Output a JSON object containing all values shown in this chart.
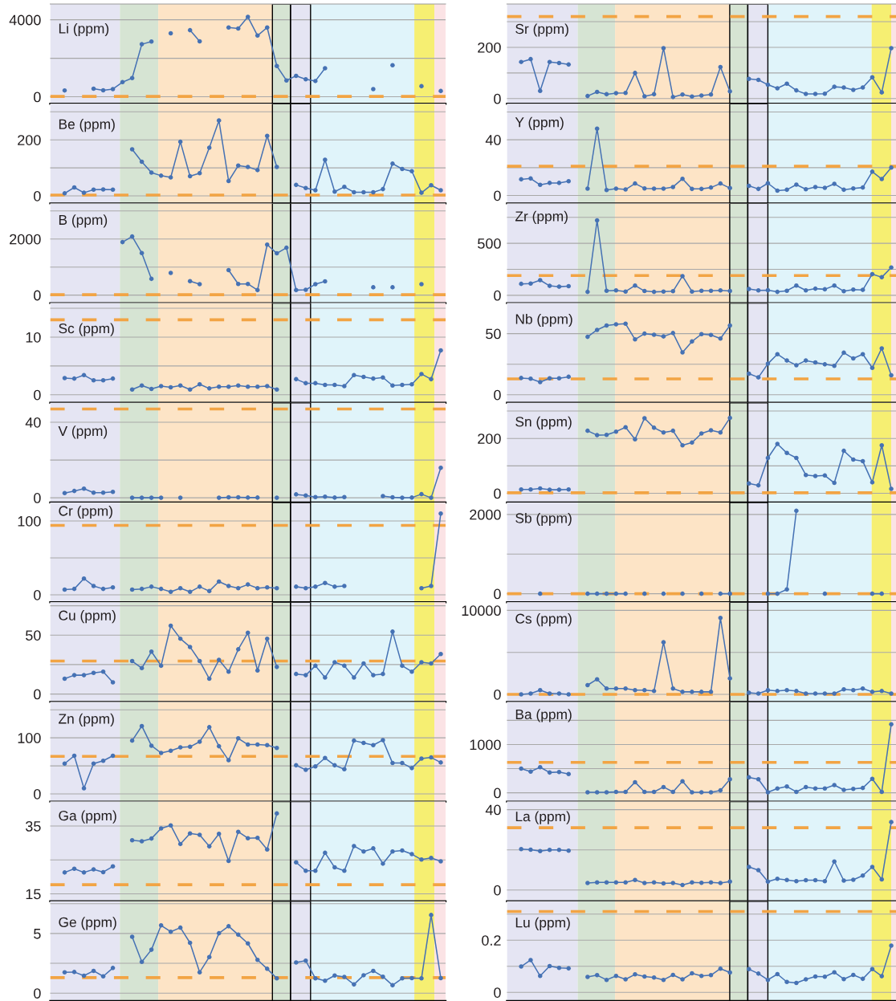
{
  "chart_data": [
    {
      "type": "line",
      "title": "Li (ppm)",
      "categories": [
        null,
        null,
        null,
        null,
        null,
        null,
        null,
        null,
        null,
        null,
        null,
        null,
        null,
        null,
        null,
        null,
        null,
        null,
        null,
        null,
        null,
        null,
        null,
        null,
        null,
        null,
        null,
        null,
        null,
        null,
        null,
        null,
        null,
        null,
        null,
        null,
        null,
        null,
        null,
        null,
        null
      ],
      "values": [
        null,
        330,
        null,
        null,
        420,
        340,
        400,
        760,
        970,
        2730,
        2870,
        null,
        3300,
        null,
        3460,
        2880,
        null,
        null,
        3600,
        3550,
        4150,
        3180,
        3600,
        1600,
        850,
        1090,
        910,
        820,
        1480,
        null,
        null,
        null,
        null,
        400,
        null,
        1640,
        null,
        null,
        550,
        null,
        300
      ],
      "color": "#4672b4",
      "marker": "circle",
      "ylim": [
        -360,
        4820
      ],
      "yticks": [
        0,
        {
          "value": 2000,
          "label": null
        },
        4000
      ],
      "grid": "y",
      "tick_labels": "y",
      "ref_lines": [
        {
          "axis": "y",
          "value": 20,
          "color": "#f2a444",
          "line_style": "dashed"
        }
      ]
    },
    {
      "type": "line",
      "title": "Sr (ppm)",
      "categories": [
        null,
        null,
        null,
        null,
        null,
        null,
        null,
        null,
        null,
        null,
        null,
        null,
        null,
        null,
        null,
        null,
        null,
        null,
        null,
        null,
        null,
        null,
        null,
        null,
        null,
        null,
        null,
        null,
        null,
        null,
        null,
        null,
        null,
        null,
        null,
        null,
        null,
        null,
        null,
        null,
        null
      ],
      "values": [
        null,
        143,
        154,
        30,
        143,
        139,
        133,
        null,
        10,
        26,
        17,
        21,
        22,
        100,
        9,
        17,
        197,
        6,
        16,
        8,
        12,
        16,
        123,
        28,
        null,
        77,
        73,
        54,
        40,
        58,
        32,
        18,
        18,
        19,
        46,
        43,
        34,
        43,
        83,
        24,
        197
      ],
      "color": "#4672b4",
      "marker": "circle",
      "ylim": [
        -20,
        369
      ],
      "yticks": [
        0,
        {
          "value": 100,
          "label": null
        },
        200,
        {
          "value": 300,
          "label": null
        }
      ],
      "grid": "y",
      "tick_labels": "y",
      "ref_lines": [
        {
          "axis": "y",
          "value": 320,
          "color": "#f2a444",
          "line_style": "dashed"
        }
      ]
    },
    {
      "type": "line",
      "title": "Be (ppm)",
      "categories": [
        null,
        null,
        null,
        null,
        null,
        null,
        null,
        null,
        null,
        null,
        null,
        null,
        null,
        null,
        null,
        null,
        null,
        null,
        null,
        null,
        null,
        null,
        null,
        null,
        null,
        null,
        null,
        null,
        null,
        null,
        null,
        null,
        null,
        null,
        null,
        null,
        null,
        null,
        null,
        null,
        null
      ],
      "values": [
        null,
        9,
        30,
        11,
        22,
        23,
        22,
        null,
        166,
        122,
        83,
        72,
        66,
        193,
        70,
        81,
        172,
        269,
        53,
        108,
        103,
        92,
        214,
        103,
        null,
        39,
        28,
        20,
        129,
        15,
        32,
        13,
        13,
        13,
        24,
        115,
        96,
        88,
        11,
        38,
        20
      ],
      "color": "#4672b4",
      "marker": "circle",
      "ylim": [
        -27,
        329
      ],
      "yticks": [
        0,
        {
          "value": 100,
          "label": null
        },
        200,
        {
          "value": 300,
          "label": null
        }
      ],
      "grid": "y",
      "tick_labels": "y",
      "ref_lines": [
        {
          "axis": "y",
          "value": 3,
          "color": "#f2a444",
          "line_style": "dashed"
        }
      ]
    },
    {
      "type": "line",
      "title": "Y (ppm)",
      "categories": [
        null,
        null,
        null,
        null,
        null,
        null,
        null,
        null,
        null,
        null,
        null,
        null,
        null,
        null,
        null,
        null,
        null,
        null,
        null,
        null,
        null,
        null,
        null,
        null,
        null,
        null,
        null,
        null,
        null,
        null,
        null,
        null,
        null,
        null,
        null,
        null,
        null,
        null,
        null,
        null,
        null
      ],
      "values": [
        null,
        11.6,
        12.2,
        7.6,
        9,
        9,
        10.2,
        null,
        4.9,
        48,
        3.9,
        4.9,
        4.3,
        8.6,
        5.1,
        4.9,
        4.9,
        6.1,
        12,
        4.7,
        4.7,
        5.7,
        8.6,
        5.3,
        null,
        6.9,
        4.7,
        8.8,
        3.5,
        4.1,
        7.8,
        4.5,
        6.1,
        5.5,
        8.4,
        4.1,
        5.1,
        5.7,
        17.1,
        11.8,
        20
      ],
      "color": "#4672b4",
      "marker": "circle",
      "ylim": [
        -5.7,
        65.9
      ],
      "yticks": [
        0,
        {
          "value": 20,
          "label": null
        },
        40,
        {
          "value": 60,
          "label": null
        }
      ],
      "grid": "y",
      "tick_labels": "y",
      "ref_lines": [
        {
          "axis": "y",
          "value": 21,
          "color": "#f2a444",
          "line_style": "dashed"
        }
      ]
    },
    {
      "type": "line",
      "title": "B (ppm)",
      "categories": [
        null,
        null,
        null,
        null,
        null,
        null,
        null,
        null,
        null,
        null,
        null,
        null,
        null,
        null,
        null,
        null,
        null,
        null,
        null,
        null,
        null,
        null,
        null,
        null,
        null,
        null,
        null,
        null,
        null,
        null,
        null,
        null,
        null,
        null,
        null,
        null,
        null,
        null,
        null,
        null,
        null
      ],
      "values": [
        null,
        null,
        null,
        null,
        null,
        null,
        null,
        1890,
        2090,
        1500,
        580,
        null,
        790,
        null,
        500,
        390,
        null,
        null,
        890,
        400,
        400,
        180,
        1800,
        1490,
        1690,
        180,
        190,
        390,
        490,
        null,
        null,
        null,
        null,
        280,
        null,
        280,
        null,
        null,
        390,
        null,
        null
      ],
      "color": "#4672b4",
      "marker": "circle",
      "ylim": [
        -284,
        3269
      ],
      "yticks": [
        0,
        {
          "value": 1000,
          "label": null
        },
        2000,
        {
          "value": 3000,
          "label": null
        }
      ],
      "grid": "y",
      "tick_labels": "y",
      "ref_lines": [
        {
          "axis": "y",
          "value": 15,
          "color": "#f2a444",
          "line_style": "dashed"
        }
      ]
    },
    {
      "type": "line",
      "title": "Zr (ppm)",
      "categories": [
        null,
        null,
        null,
        null,
        null,
        null,
        null,
        null,
        null,
        null,
        null,
        null,
        null,
        null,
        null,
        null,
        null,
        null,
        null,
        null,
        null,
        null,
        null,
        null,
        null,
        null,
        null,
        null,
        null,
        null,
        null,
        null,
        null,
        null,
        null,
        null,
        null,
        null,
        null,
        null,
        null
      ],
      "values": [
        null,
        110,
        113,
        146,
        91,
        83,
        88,
        null,
        33,
        721,
        44,
        47,
        36,
        94,
        41,
        33,
        36,
        39,
        185,
        36,
        44,
        44,
        47,
        41,
        null,
        61,
        47,
        50,
        33,
        44,
        94,
        47,
        64,
        58,
        94,
        39,
        55,
        52,
        204,
        174,
        268
      ],
      "color": "#4672b4",
      "marker": "circle",
      "ylim": [
        -75,
        884
      ],
      "yticks": [
        0,
        {
          "value": 250,
          "label": null
        },
        500,
        {
          "value": 750,
          "label": null
        }
      ],
      "grid": "y",
      "tick_labels": "y",
      "ref_lines": [
        {
          "axis": "y",
          "value": 190,
          "color": "#f2a444",
          "line_style": "dashed"
        }
      ]
    },
    {
      "type": "line",
      "title": "Sc (ppm)",
      "categories": [
        null,
        null,
        null,
        null,
        null,
        null,
        null,
        null,
        null,
        null,
        null,
        null,
        null,
        null,
        null,
        null,
        null,
        null,
        null,
        null,
        null,
        null,
        null,
        null,
        null,
        null,
        null,
        null,
        null,
        null,
        null,
        null,
        null,
        null,
        null,
        null,
        null,
        null,
        null,
        null,
        null
      ],
      "values": [
        null,
        2.9,
        2.8,
        3.4,
        2.5,
        2.5,
        2.8,
        null,
        0.9,
        1.6,
        1.0,
        1.5,
        1.3,
        1.6,
        0.9,
        1.8,
        1.1,
        1.4,
        1.4,
        1.6,
        1.4,
        1.4,
        1.5,
        0.9,
        null,
        2.7,
        2.0,
        2.0,
        1.7,
        1.7,
        1.5,
        3.4,
        3.1,
        2.8,
        3.0,
        1.6,
        1.7,
        1.8,
        3.6,
        2.7,
        7.7
      ],
      "color": "#4672b4",
      "marker": "circle",
      "ylim": [
        -1.4,
        15.9
      ],
      "yticks": [
        0,
        {
          "value": 5,
          "label": null
        },
        10,
        {
          "value": 15,
          "label": null
        }
      ],
      "grid": "y",
      "tick_labels": "y",
      "ref_lines": [
        {
          "axis": "y",
          "value": 13,
          "color": "#f2a444",
          "line_style": "dashed"
        }
      ]
    },
    {
      "type": "line",
      "title": "Nb (ppm)",
      "categories": [
        null,
        null,
        null,
        null,
        null,
        null,
        null,
        null,
        null,
        null,
        null,
        null,
        null,
        null,
        null,
        null,
        null,
        null,
        null,
        null,
        null,
        null,
        null,
        null,
        null,
        null,
        null,
        null,
        null,
        null,
        null,
        null,
        null,
        null,
        null,
        null,
        null,
        null,
        null,
        null,
        null
      ],
      "values": [
        null,
        13.7,
        13.1,
        10.4,
        13.5,
        13.5,
        14.7,
        null,
        47.4,
        53.1,
        56.7,
        57.6,
        58.1,
        45.3,
        50,
        49.1,
        47.7,
        50.5,
        34.7,
        43.6,
        49.6,
        48.9,
        46,
        56.7,
        null,
        17.3,
        14.2,
        25.4,
        33.2,
        28,
        24.2,
        28,
        26.4,
        24.9,
        23.7,
        34.4,
        29.7,
        33.2,
        22,
        38,
        15.9
      ],
      "color": "#4672b4",
      "marker": "circle",
      "ylim": [
        -6.6,
        75
      ],
      "yticks": [
        0,
        {
          "value": 25,
          "label": null
        },
        50
      ],
      "grid": "y",
      "tick_labels": "y",
      "ref_lines": [
        {
          "axis": "y",
          "value": 13,
          "color": "#f2a444",
          "line_style": "dashed"
        }
      ]
    },
    {
      "type": "line",
      "title": "V (ppm)",
      "categories": [
        null,
        null,
        null,
        null,
        null,
        null,
        null,
        null,
        null,
        null,
        null,
        null,
        null,
        null,
        null,
        null,
        null,
        null,
        null,
        null,
        null,
        null,
        null,
        null,
        null,
        null,
        null,
        null,
        null,
        null,
        null,
        null,
        null,
        null,
        null,
        null,
        null,
        null,
        null,
        null,
        null
      ],
      "values": [
        null,
        2.5,
        3.6,
        4.8,
        2.7,
        2.7,
        3.1,
        null,
        0,
        0,
        0,
        0,
        null,
        0,
        null,
        null,
        null,
        0,
        0.3,
        0.3,
        0.1,
        0.1,
        null,
        0,
        null,
        1.8,
        1.2,
        0.4,
        0.6,
        0.1,
        0.4,
        null,
        null,
        null,
        0.9,
        0.3,
        0,
        0.1,
        1.9,
        0,
        15.9
      ],
      "color": "#4672b4",
      "marker": "circle",
      "ylim": [
        -2.5,
        50.3
      ],
      "yticks": [
        0,
        {
          "value": 20,
          "label": null
        },
        40
      ],
      "grid": "y",
      "tick_labels": "y",
      "ref_lines": [
        {
          "axis": "y",
          "value": 47,
          "color": "#f2a444",
          "line_style": "dashed"
        }
      ]
    },
    {
      "type": "line",
      "title": "Sn (ppm)",
      "categories": [
        null,
        null,
        null,
        null,
        null,
        null,
        null,
        null,
        null,
        null,
        null,
        null,
        null,
        null,
        null,
        null,
        null,
        null,
        null,
        null,
        null,
        null,
        null,
        null,
        null,
        null,
        null,
        null,
        null,
        null,
        null,
        null,
        null,
        null,
        null,
        null,
        null,
        null,
        null,
        null,
        null
      ],
      "values": [
        null,
        14,
        14,
        18,
        13,
        13,
        14,
        null,
        228,
        212,
        213,
        225,
        241,
        197,
        274,
        239,
        222,
        228,
        175,
        185,
        218,
        230,
        222,
        275,
        null,
        36,
        29,
        129,
        180,
        147,
        129,
        67,
        63,
        65,
        38,
        155,
        123,
        117,
        40,
        175,
        16
      ],
      "color": "#4672b4",
      "marker": "circle",
      "ylim": [
        -33.5,
        330
      ],
      "yticks": [
        0,
        {
          "value": 100,
          "label": null
        },
        200,
        {
          "value": 300,
          "label": null
        }
      ],
      "grid": "y",
      "tick_labels": "y",
      "ref_lines": [
        {
          "axis": "y",
          "value": 2,
          "color": "#f2a444",
          "line_style": "dashed"
        }
      ]
    },
    {
      "type": "line",
      "title": "Cr (ppm)",
      "categories": [
        null,
        null,
        null,
        null,
        null,
        null,
        null,
        null,
        null,
        null,
        null,
        null,
        null,
        null,
        null,
        null,
        null,
        null,
        null,
        null,
        null,
        null,
        null,
        null,
        null,
        null,
        null,
        null,
        null,
        null,
        null,
        null,
        null,
        null,
        null,
        null,
        null,
        null,
        null,
        null,
        null
      ],
      "values": [
        null,
        7,
        8,
        22,
        12,
        8,
        10,
        null,
        7,
        8,
        11,
        8,
        4,
        9,
        4,
        11,
        5,
        18,
        12,
        9,
        14,
        9,
        10,
        9,
        null,
        11,
        9,
        11,
        16,
        11,
        12,
        null,
        null,
        null,
        null,
        null,
        null,
        null,
        9,
        12,
        110
      ],
      "color": "#4672b4",
      "marker": "circle",
      "ylim": [
        -10,
        125
      ],
      "yticks": [
        0,
        {
          "value": 50,
          "label": null
        },
        100
      ],
      "grid": "y",
      "tick_labels": "y",
      "ref_lines": [
        {
          "axis": "y",
          "value": 94,
          "color": "#f2a444",
          "line_style": "dashed"
        }
      ]
    },
    {
      "type": "line",
      "title": "Sb (ppm)",
      "categories": [
        null,
        null,
        null,
        null,
        null,
        null,
        null,
        null,
        null,
        null,
        null,
        null,
        null,
        null,
        null,
        null,
        null,
        null,
        null,
        null,
        null,
        null,
        null,
        null,
        null,
        null,
        null,
        null,
        null,
        null,
        null,
        null,
        null,
        null,
        null,
        null,
        null,
        null,
        null,
        null,
        null
      ],
      "values": [
        null,
        null,
        null,
        0,
        null,
        null,
        null,
        null,
        0,
        0,
        0,
        0,
        0,
        null,
        0,
        null,
        0,
        null,
        0,
        null,
        0,
        null,
        0,
        0,
        null,
        null,
        null,
        0,
        0,
        110,
        2090,
        null,
        null,
        0,
        null,
        null,
        null,
        null,
        0,
        0,
        null
      ],
      "color": "#4672b4",
      "marker": "circle",
      "ylim": [
        -214,
        2300
      ],
      "yticks": [
        0,
        {
          "value": 1000,
          "label": null
        },
        2000
      ],
      "grid": "y",
      "tick_labels": "y",
      "ref_lines": [
        {
          "axis": "y",
          "value": 0,
          "color": "#f2a444",
          "line_style": "dashed"
        }
      ]
    },
    {
      "type": "line",
      "title": "Cu (ppm)",
      "categories": [
        null,
        null,
        null,
        null,
        null,
        null,
        null,
        null,
        null,
        null,
        null,
        null,
        null,
        null,
        null,
        null,
        null,
        null,
        null,
        null,
        null,
        null,
        null,
        null,
        null,
        null,
        null,
        null,
        null,
        null,
        null,
        null,
        null,
        null,
        null,
        null,
        null,
        null,
        null,
        null,
        null
      ],
      "values": [
        null,
        13,
        16,
        16,
        18,
        19,
        10,
        null,
        28,
        22,
        36,
        24,
        58,
        47,
        40,
        28,
        13,
        29,
        19,
        38,
        52,
        20,
        47,
        23,
        null,
        17,
        16,
        24,
        14,
        27,
        24,
        14,
        26,
        16,
        17,
        53,
        24,
        19,
        27,
        26,
        34
      ],
      "color": "#4672b4",
      "marker": "circle",
      "ylim": [
        -6.7,
        78
      ],
      "yticks": [
        0,
        {
          "value": 25,
          "label": null
        },
        50,
        {
          "value": 75,
          "label": null
        }
      ],
      "grid": "y",
      "tick_labels": "y",
      "ref_lines": [
        {
          "axis": "y",
          "value": 28,
          "color": "#f2a444",
          "line_style": "dashed"
        }
      ]
    },
    {
      "type": "line",
      "title": "Cs (ppm)",
      "categories": [
        null,
        null,
        null,
        null,
        null,
        null,
        null,
        null,
        null,
        null,
        null,
        null,
        null,
        null,
        null,
        null,
        null,
        null,
        null,
        null,
        null,
        null,
        null,
        null,
        null,
        null,
        null,
        null,
        null,
        null,
        null,
        null,
        null,
        null,
        null,
        null,
        null,
        null,
        null,
        null,
        null
      ],
      "values": [
        null,
        0,
        100,
        500,
        100,
        100,
        0,
        null,
        1100,
        1800,
        700,
        700,
        700,
        500,
        500,
        400,
        6200,
        700,
        300,
        300,
        300,
        300,
        9100,
        1900,
        null,
        200,
        100,
        500,
        400,
        500,
        400,
        100,
        100,
        100,
        100,
        600,
        500,
        700,
        300,
        400,
        100
      ],
      "color": "#4672b4",
      "marker": "circle",
      "ylim": [
        -896,
        10974
      ],
      "yticks": [
        0,
        {
          "value": 5000,
          "label": null
        },
        10000
      ],
      "grid": "y",
      "tick_labels": "y",
      "ref_lines": [
        {
          "axis": "y",
          "value": 5,
          "color": "#f2a444",
          "line_style": "dashed"
        }
      ]
    },
    {
      "type": "line",
      "title": "Zn (ppm)",
      "categories": [
        null,
        null,
        null,
        null,
        null,
        null,
        null,
        null,
        null,
        null,
        null,
        null,
        null,
        null,
        null,
        null,
        null,
        null,
        null,
        null,
        null,
        null,
        null,
        null,
        null,
        null,
        null,
        null,
        null,
        null,
        null,
        null,
        null,
        null,
        null,
        null,
        null,
        null,
        null,
        null,
        null
      ],
      "values": [
        null,
        54,
        68,
        10,
        54,
        59,
        68,
        null,
        95,
        121,
        86,
        73,
        77,
        83,
        84,
        93,
        119,
        85,
        60,
        99,
        88,
        88,
        87,
        82,
        null,
        51,
        43,
        49,
        64,
        51,
        44,
        95,
        91,
        87,
        96,
        55,
        55,
        46,
        63,
        65,
        56
      ],
      "color": "#4672b4",
      "marker": "circle",
      "ylim": [
        -13.7,
        164
      ],
      "yticks": [
        0,
        {
          "value": 50,
          "label": null
        },
        100,
        {
          "value": 150,
          "label": null
        }
      ],
      "grid": "y",
      "tick_labels": "y",
      "ref_lines": [
        {
          "axis": "y",
          "value": 67,
          "color": "#f2a444",
          "line_style": "dashed"
        }
      ]
    },
    {
      "type": "line",
      "title": "Ba (ppm)",
      "categories": [
        null,
        null,
        null,
        null,
        null,
        null,
        null,
        null,
        null,
        null,
        null,
        null,
        null,
        null,
        null,
        null,
        null,
        null,
        null,
        null,
        null,
        null,
        null,
        null,
        null,
        null,
        null,
        null,
        null,
        null,
        null,
        null,
        null,
        null,
        null,
        null,
        null,
        null,
        null,
        null,
        null
      ],
      "values": [
        null,
        500,
        440,
        530,
        420,
        430,
        390,
        null,
        10,
        10,
        10,
        20,
        20,
        220,
        20,
        20,
        120,
        20,
        240,
        10,
        10,
        10,
        50,
        280,
        null,
        320,
        280,
        10,
        90,
        130,
        20,
        120,
        90,
        90,
        160,
        60,
        80,
        100,
        290,
        20,
        1420
      ],
      "color": "#4672b4",
      "marker": "circle",
      "ylim": [
        -182,
        1882
      ],
      "yticks": [
        0,
        {
          "value": 500,
          "label": null
        },
        1000,
        {
          "value": 1500,
          "label": null
        }
      ],
      "grid": "y",
      "tick_labels": "y",
      "ref_lines": [
        {
          "axis": "y",
          "value": 630,
          "color": "#f2a444",
          "line_style": "dashed"
        }
      ]
    },
    {
      "type": "line",
      "title": "Ga (ppm)",
      "categories": [
        null,
        null,
        null,
        null,
        null,
        null,
        null,
        null,
        null,
        null,
        null,
        null,
        null,
        null,
        null,
        null,
        null,
        null,
        null,
        null,
        null,
        null,
        null,
        null,
        null,
        null,
        null,
        null,
        null,
        null,
        null,
        null,
        null,
        null,
        null,
        null,
        null,
        null,
        null,
        null,
        null
      ],
      "values": [
        null,
        21.3,
        22.4,
        21.3,
        22.2,
        21.4,
        23.1,
        null,
        30.8,
        30.5,
        31.3,
        34.3,
        35.2,
        29.7,
        32.8,
        32.4,
        29,
        32.7,
        24.7,
        33.3,
        31.4,
        31.5,
        28.1,
        38.7,
        null,
        24.3,
        21.8,
        21.8,
        27.1,
        22.8,
        21.8,
        29.1,
        27.5,
        28.4,
        23.9,
        27.5,
        27.8,
        26.7,
        25.1,
        25.6,
        24.6
      ],
      "color": "#4672b4",
      "marker": "circle",
      "ylim": [
        12.8,
        42.2
      ],
      "yticks": [
        15,
        {
          "value": 25,
          "label": null
        },
        35
      ],
      "grid": "y",
      "tick_labels": "y",
      "ref_lines": [
        {
          "axis": "y",
          "value": 17.7,
          "color": "#f2a444",
          "line_style": "dashed"
        }
      ]
    },
    {
      "type": "line",
      "title": "La (ppm)",
      "categories": [
        null,
        null,
        null,
        null,
        null,
        null,
        null,
        null,
        null,
        null,
        null,
        null,
        null,
        null,
        null,
        null,
        null,
        null,
        null,
        null,
        null,
        null,
        null,
        null,
        null,
        null,
        null,
        null,
        null,
        null,
        null,
        null,
        null,
        null,
        null,
        null,
        null,
        null,
        null,
        null,
        null
      ],
      "values": [
        null,
        20.4,
        20.1,
        19.4,
        20,
        20,
        19.6,
        null,
        3.5,
        3.8,
        3.8,
        3.8,
        3.8,
        5,
        3.5,
        3.8,
        3.3,
        3.5,
        2.5,
        3.8,
        3.6,
        3.8,
        3.5,
        4.2,
        null,
        11.5,
        9.9,
        4.2,
        5.6,
        5,
        4.4,
        4.9,
        4.9,
        4.4,
        14.2,
        4.7,
        5.1,
        7.2,
        11.5,
        5.3,
        33.8
      ],
      "color": "#4672b4",
      "marker": "circle",
      "ylim": [
        -5.6,
        44
      ],
      "yticks": [
        0,
        {
          "value": 20,
          "label": null
        },
        40
      ],
      "grid": "y",
      "tick_labels": "y",
      "ref_lines": [
        {
          "axis": "y",
          "value": 31,
          "color": "#f2a444",
          "line_style": "dashed"
        }
      ]
    },
    {
      "type": "line",
      "title": "Ge (ppm)",
      "categories": [
        null,
        null,
        null,
        null,
        null,
        null,
        null,
        null,
        null,
        null,
        null,
        null,
        null,
        null,
        null,
        null,
        null,
        null,
        null,
        null,
        null,
        null,
        null,
        null,
        null,
        null,
        null,
        null,
        null,
        null,
        null,
        null,
        null,
        null,
        null,
        null,
        null,
        null,
        null,
        null,
        null
      ],
      "values": [
        null,
        1.75,
        1.77,
        1.46,
        1.87,
        1.41,
        2.11,
        null,
        4.73,
        2.62,
        3.64,
        5.68,
        5.15,
        5.49,
        4.22,
        1.75,
        3.03,
        5.02,
        5.61,
        4.9,
        4.17,
        2.79,
        2.04,
        1.24,
        null,
        2.57,
        2.72,
        1.24,
        1.04,
        1.48,
        1.36,
        0.73,
        1.5,
        1.87,
        1.38,
        0.66,
        1.24,
        1.26,
        1.24,
        6.55,
        1.26
      ],
      "color": "#4672b4",
      "marker": "circle",
      "ylim": [
        -0.66,
        7.7
      ],
      "yticks": [
        0,
        {
          "value": 2.5,
          "label": null
        },
        5,
        {
          "value": 7.5,
          "label": null
        }
      ],
      "grid": "y",
      "tick_labels": "y",
      "ref_lines": [
        {
          "axis": "y",
          "value": 1.3,
          "color": "#f2a444",
          "line_style": "dashed"
        }
      ]
    },
    {
      "type": "line",
      "title": "Lu (ppm)",
      "categories": [
        null,
        null,
        null,
        null,
        null,
        null,
        null,
        null,
        null,
        null,
        null,
        null,
        null,
        null,
        null,
        null,
        null,
        null,
        null,
        null,
        null,
        null,
        null,
        null,
        null,
        null,
        null,
        null,
        null,
        null,
        null,
        null,
        null,
        null,
        null,
        null,
        null,
        null,
        null,
        null,
        null
      ],
      "values": [
        null,
        0.099,
        0.124,
        0.063,
        0.101,
        0.094,
        0.092,
        null,
        0.059,
        0.066,
        0.048,
        0.063,
        0.05,
        0.069,
        0.061,
        0.057,
        0.048,
        0.067,
        0.05,
        0.073,
        0.063,
        0.066,
        0.091,
        0.076,
        null,
        0.089,
        0.072,
        0.048,
        0.07,
        0.04,
        0.036,
        0.05,
        0.061,
        0.06,
        0.077,
        0.051,
        0.067,
        0.052,
        0.089,
        0.062,
        0.179
      ],
      "color": "#4672b4",
      "marker": "circle",
      "ylim": [
        -0.033,
        0.349
      ],
      "yticks": [
        0,
        {
          "value": 0.1,
          "label": null
        },
        0.2,
        {
          "value": 0.3,
          "label": null
        }
      ],
      "grid": "y",
      "tick_labels": "y",
      "ref_lines": [
        {
          "axis": "y",
          "value": 0.31,
          "color": "#f2a444",
          "line_style": "dashed"
        }
      ]
    }
  ]
}
